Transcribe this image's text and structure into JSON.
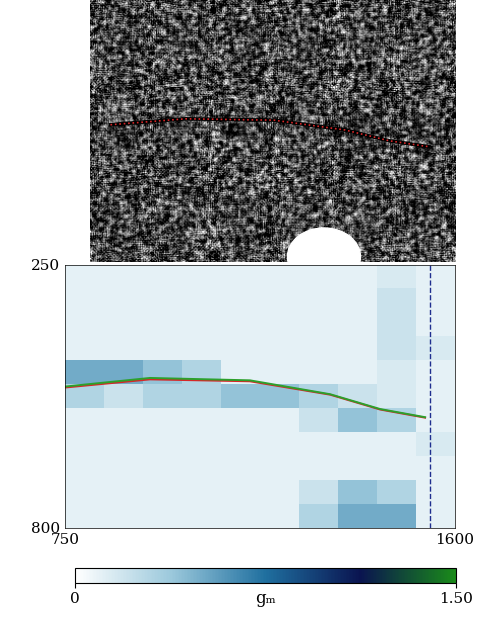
{
  "chart_data": [
    {
      "type": "image",
      "tick_labels": false,
      "xlim": [
        700,
        1600
      ],
      "ylim": [
        900,
        150
      ],
      "series": [
        {
          "color": "#d62728",
          "line_style": "dotted",
          "x": [
            750,
            935,
            1153,
            1328,
            1437,
            1535
          ],
          "y": [
            507,
            490,
            494,
            522,
            553,
            570
          ]
        }
      ]
    },
    {
      "type": "heatmap",
      "colorbar_label": "gₘ",
      "xlim": [
        750,
        1600
      ],
      "ylim": [
        800,
        250
      ],
      "xticks": [
        750,
        1600
      ],
      "yticks": [
        250,
        800
      ],
      "colorbar_range": [
        0,
        1.5
      ],
      "colorbar_ticks": [
        0,
        {
          "value": 1.5,
          "label": "1.50"
        }
      ],
      "x_edges": [
        750,
        835,
        920,
        1005,
        1090,
        1175,
        1260,
        1345,
        1430,
        1515,
        1600
      ],
      "y_edges": [
        250,
        300,
        350,
        400,
        450,
        500,
        550,
        600,
        650,
        700,
        750,
        800
      ],
      "cells": [
        [
          0.1,
          0.1,
          0.1,
          0.1,
          0.1,
          0.1,
          0.1,
          0.1,
          0.15,
          0.1
        ],
        [
          0.1,
          0.1,
          0.1,
          0.1,
          0.1,
          0.1,
          0.1,
          0.1,
          0.2,
          0.1
        ],
        [
          0.1,
          0.1,
          0.1,
          0.1,
          0.1,
          0.1,
          0.1,
          0.1,
          0.2,
          0.1
        ],
        [
          0.1,
          0.1,
          0.1,
          0.1,
          0.1,
          0.1,
          0.1,
          0.1,
          0.2,
          0.15
        ],
        [
          0.5,
          0.5,
          0.4,
          0.3,
          0.1,
          0.1,
          0.1,
          0.1,
          0.15,
          0.1
        ],
        [
          0.3,
          0.2,
          0.3,
          0.3,
          0.4,
          0.4,
          0.3,
          0.2,
          0.15,
          0.1
        ],
        [
          0.1,
          0.1,
          0.1,
          0.1,
          0.1,
          0.1,
          0.2,
          0.4,
          0.3,
          0.1
        ],
        [
          0.1,
          0.1,
          0.1,
          0.1,
          0.1,
          0.1,
          0.1,
          0.1,
          0.1,
          0.15
        ],
        [
          0.1,
          0.1,
          0.1,
          0.1,
          0.1,
          0.1,
          0.1,
          0.1,
          0.1,
          0.1
        ],
        [
          0.1,
          0.1,
          0.1,
          0.1,
          0.1,
          0.1,
          0.2,
          0.4,
          0.3,
          0.1
        ],
        [
          0.1,
          0.1,
          0.1,
          0.1,
          0.1,
          0.1,
          0.3,
          0.5,
          0.5,
          0.1
        ]
      ],
      "series": [
        {
          "color": "#d62728",
          "x": [
            750,
            935,
            1153,
            1328,
            1437,
            1535
          ],
          "y": [
            507,
            490,
            494,
            522,
            553,
            570
          ]
        },
        {
          "color": "#2ca02c",
          "x": [
            750,
            935,
            1153,
            1328,
            1437,
            1535
          ],
          "y": [
            505,
            487,
            492,
            521,
            552,
            569
          ]
        }
      ],
      "vline": {
        "x": 1546,
        "color": "#1f2f8f",
        "line_style": "dashed"
      }
    }
  ]
}
